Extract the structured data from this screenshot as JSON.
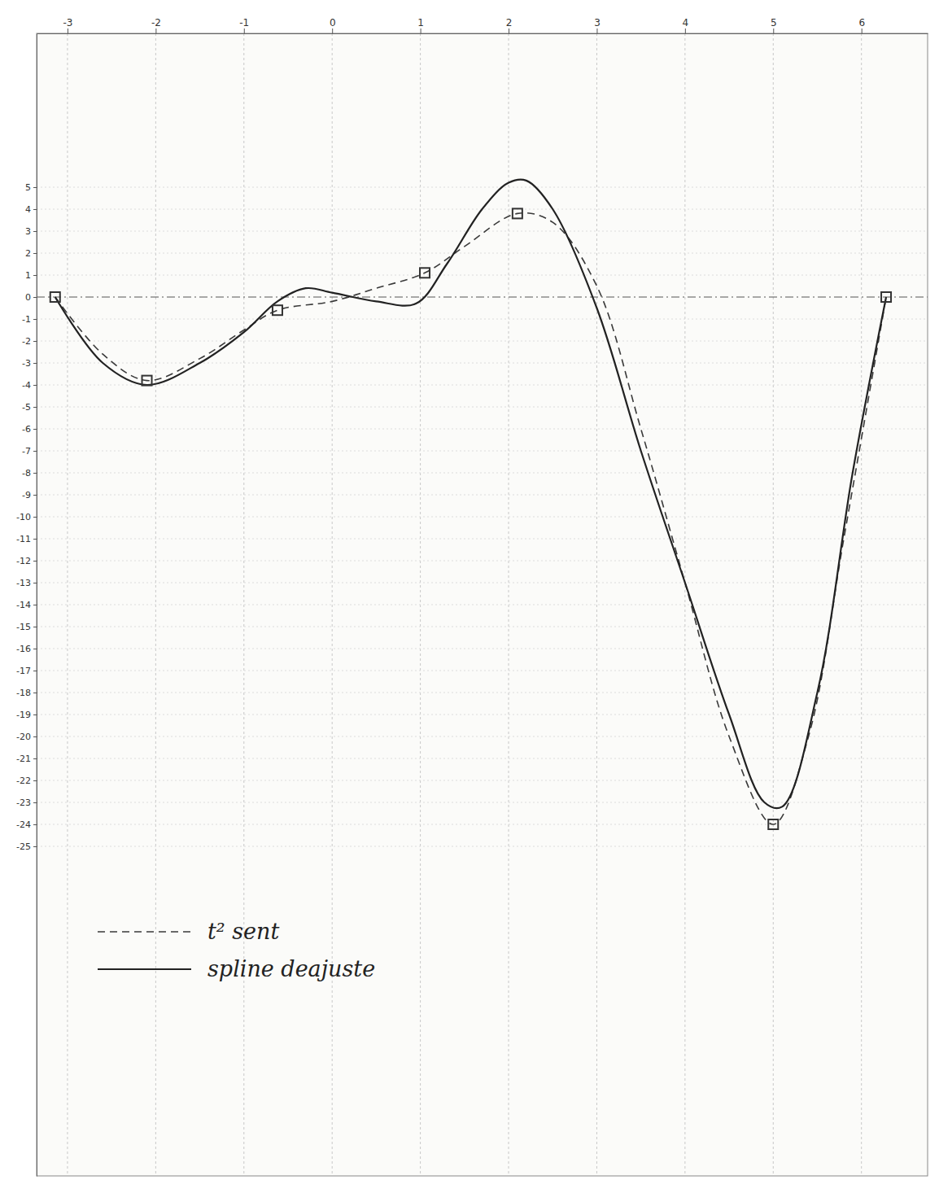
{
  "chart_data": {
    "type": "line",
    "xlim": [
      -3.35,
      6.75
    ],
    "ylim": [
      -40,
      12
    ],
    "xticks": [
      -3,
      -2,
      -1,
      0,
      1,
      2,
      3,
      4,
      5,
      6
    ],
    "yticks": [
      5,
      4,
      3,
      2,
      1,
      0,
      -1,
      -2,
      -3,
      -4,
      -5,
      -6,
      -7,
      -8,
      -9,
      -10,
      -11,
      -12,
      -13,
      -14,
      -15,
      -16,
      -17,
      -18,
      -19,
      -20,
      -21,
      -22,
      -23,
      -24,
      -25
    ],
    "grid": true,
    "legend": "lower left",
    "series": [
      {
        "name": "t² sent",
        "color": "#3a3a3a",
        "line_style": "dashed",
        "x": [
          -3.14,
          -2.6,
          -2.1,
          -1.5,
          -1.0,
          -0.62,
          0.0,
          0.5,
          1.05,
          1.5,
          2.1,
          2.5,
          3.0,
          3.5,
          4.0,
          4.5,
          5.0,
          5.4,
          5.8,
          6.28
        ],
        "values": [
          0,
          -2.6,
          -3.8,
          -2.8,
          -1.5,
          -0.6,
          -0.2,
          0.4,
          1.1,
          2.3,
          3.8,
          3.4,
          0.5,
          -6,
          -13,
          -20,
          -24,
          -20,
          -11,
          0
        ]
      },
      {
        "name": "spline deajuste",
        "color": "#222222",
        "line_style": "solid",
        "x": [
          -3.14,
          -2.6,
          -2.1,
          -1.5,
          -1.0,
          -0.62,
          -0.3,
          0.0,
          0.5,
          0.95,
          1.3,
          1.7,
          2.0,
          2.2,
          2.5,
          3.0,
          3.5,
          4.0,
          4.5,
          4.9,
          5.1,
          5.5,
          5.9,
          6.28
        ],
        "values": [
          0,
          -3,
          -4,
          -3,
          -1.6,
          -0.2,
          0.4,
          0.2,
          -0.2,
          -0.3,
          1.5,
          4,
          5.2,
          5.3,
          4,
          -0.5,
          -7,
          -13,
          -19,
          -23,
          -23.2,
          -18,
          -8,
          0
        ]
      },
      {
        "type": "scatter",
        "marker": "square",
        "color": "#333333",
        "x": [
          -3.14,
          -2.1,
          -0.62,
          1.05,
          2.1,
          5.0,
          6.28
        ],
        "values": [
          0,
          -3.8,
          -0.6,
          1.1,
          3.8,
          -24,
          0
        ]
      }
    ]
  }
}
